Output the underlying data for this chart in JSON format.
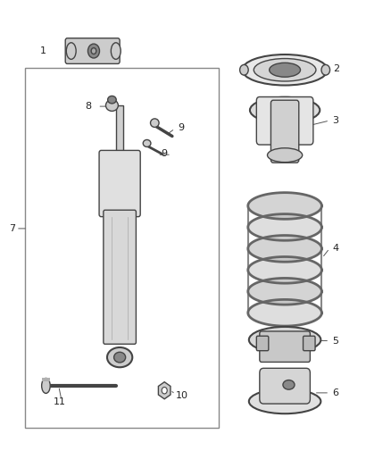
{
  "background_color": "#ffffff",
  "part_color": "#cccccc",
  "part_dark": "#888888",
  "part_outline": "#444444",
  "label_color": "#222222",
  "figsize": [
    4.38,
    5.33
  ],
  "dpi": 100
}
